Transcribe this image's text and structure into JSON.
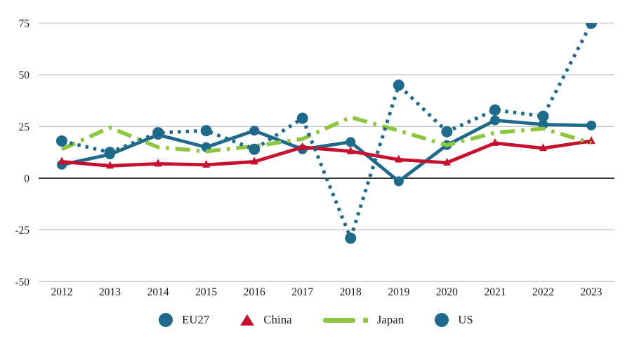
{
  "chart_data": {
    "type": "line",
    "title": "",
    "xlabel": "",
    "ylabel": "",
    "x": [
      2012,
      2013,
      2014,
      2015,
      2016,
      2017,
      2018,
      2019,
      2020,
      2021,
      2022,
      2023
    ],
    "yticks": [
      75,
      50,
      25,
      0,
      -25,
      -50
    ],
    "ylim": [
      -50,
      80
    ],
    "grid": true,
    "legend_position": "bottom",
    "series": [
      {
        "name": "EU27",
        "color": "#1f6a8a",
        "line": "solid",
        "marker": "circle",
        "values": [
          6.5,
          11.5,
          21,
          15,
          23,
          14,
          17.5,
          -1.5,
          16,
          28,
          26,
          25.5
        ]
      },
      {
        "name": "China",
        "color": "#c8102e",
        "line": "solid",
        "marker": "triangle",
        "values": [
          8,
          6,
          7,
          6.5,
          8,
          15,
          13,
          9,
          7.5,
          17,
          14.5,
          18
        ]
      },
      {
        "name": "Japan",
        "color": "#8dc63f",
        "line": "dashdot",
        "marker": "none",
        "values": [
          14,
          24.5,
          15,
          13,
          15.5,
          19,
          29.5,
          23,
          16,
          22,
          24,
          17
        ]
      },
      {
        "name": "US",
        "color": "#1f6a8a",
        "line": "dotted",
        "marker": "circle",
        "values": [
          18,
          12.5,
          22,
          23,
          14,
          29,
          -29,
          45,
          22.5,
          33,
          30,
          75
        ]
      }
    ]
  }
}
